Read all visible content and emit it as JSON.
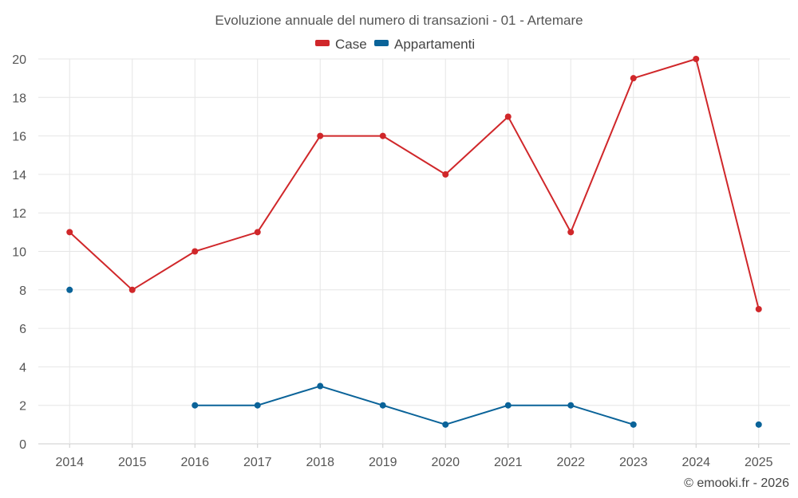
{
  "chart_data": {
    "type": "line",
    "title": "Evoluzione annuale del numero di transazioni - 01 - Artemare",
    "categories": [
      "2014",
      "2015",
      "2016",
      "2017",
      "2018",
      "2019",
      "2020",
      "2021",
      "2022",
      "2023",
      "2024",
      "2025"
    ],
    "series": [
      {
        "name": "Case",
        "color": "#d0272a",
        "values": [
          11,
          8,
          10,
          11,
          16,
          16,
          14,
          17,
          11,
          19,
          20,
          7
        ]
      },
      {
        "name": "Appartamenti",
        "color": "#0a6399",
        "values": [
          8,
          null,
          2,
          2,
          3,
          2,
          1,
          2,
          2,
          1,
          null,
          1
        ]
      }
    ],
    "ylim": [
      0,
      20
    ],
    "yticks": [
      0,
      2,
      4,
      6,
      8,
      10,
      12,
      14,
      16,
      18,
      20
    ],
    "legend_position": "top-center",
    "grid": true
  },
  "credit": "© emooki.fr - 2026"
}
